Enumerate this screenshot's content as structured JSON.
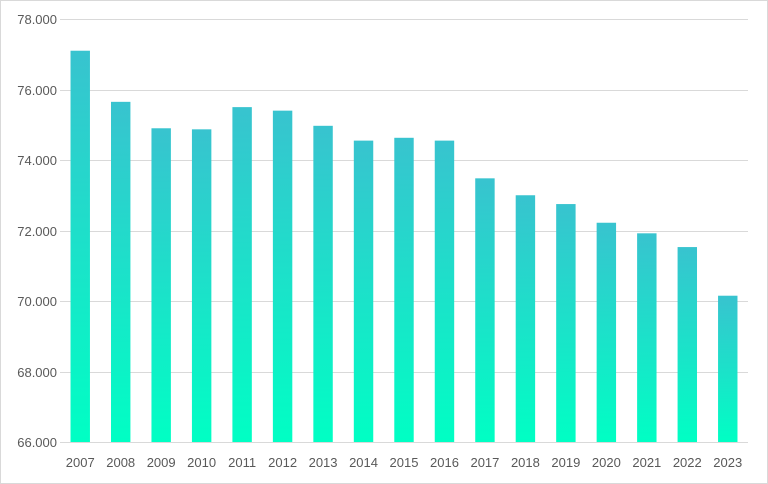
{
  "chart_data": {
    "type": "bar",
    "title": "",
    "xlabel": "",
    "ylabel": "",
    "categories": [
      "2007",
      "2008",
      "2009",
      "2010",
      "2011",
      "2012",
      "2013",
      "2014",
      "2015",
      "2016",
      "2017",
      "2018",
      "2019",
      "2020",
      "2021",
      "2022",
      "2023"
    ],
    "values": [
      77.1,
      75.65,
      74.9,
      74.87,
      75.5,
      75.4,
      74.97,
      74.55,
      74.63,
      74.55,
      73.48,
      73.0,
      72.75,
      72.22,
      71.92,
      71.53,
      70.15
    ],
    "ylim": [
      66,
      78
    ],
    "yticks": [
      66,
      68,
      70,
      72,
      74,
      76,
      78
    ],
    "ytick_labels": [
      "66.000",
      "68.000",
      "70.000",
      "72.000",
      "74.000",
      "76.000",
      "78.000"
    ],
    "grid": true,
    "legend": "none",
    "colors": {
      "bar_top": "#38c3cf",
      "bar_bottom": "#00ffc4",
      "grid": "#d9d9d9",
      "text": "#595959"
    }
  }
}
